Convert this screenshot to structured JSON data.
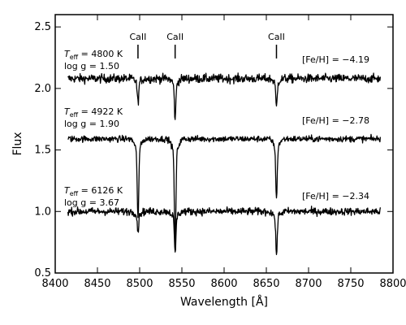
{
  "chart_data": {
    "type": "line",
    "xlabel": "Wavelength [Å]",
    "ylabel": "Flux",
    "xlim": [
      8400,
      8800
    ],
    "ylim": [
      0.5,
      2.6
    ],
    "x_ticks": [
      8400,
      8450,
      8500,
      8550,
      8600,
      8650,
      8700,
      8750,
      8800
    ],
    "y_ticks": [
      0.5,
      1.0,
      1.5,
      2.0,
      2.5
    ],
    "grid": false,
    "lines": [
      {
        "label": "CaII",
        "wavelength": 8498
      },
      {
        "label": "CaII",
        "wavelength": 8542
      },
      {
        "label": "CaII",
        "wavelength": 8662
      }
    ],
    "series": [
      {
        "teff": "4800 K",
        "logg": "log g = 1.50",
        "feh": "[Fe/H] = −4.19",
        "x_range": [
          8415,
          8785
        ],
        "baseline": 2.08,
        "noise": 0.035,
        "absorption": [
          {
            "x": 8498,
            "depth": 0.17
          },
          {
            "x": 8542,
            "depth": 0.28
          },
          {
            "x": 8662,
            "depth": 0.2
          }
        ]
      },
      {
        "teff": "4922 K",
        "logg": "log g = 1.90",
        "feh": "[Fe/H] = −2.78",
        "x_range": [
          8415,
          8785
        ],
        "baseline": 1.59,
        "noise": 0.025,
        "absorption": [
          {
            "x": 8498,
            "depth": 0.57
          },
          {
            "x": 8542,
            "depth": 0.76
          },
          {
            "x": 8662,
            "depth": 0.42
          }
        ]
      },
      {
        "teff": "6126 K",
        "logg": "log g = 3.67",
        "feh": "[Fe/H] = −2.34",
        "x_range": [
          8415,
          8785
        ],
        "baseline": 1.0,
        "noise": 0.03,
        "absorption": [
          {
            "x": 8498,
            "depth": 0.14
          },
          {
            "x": 8542,
            "depth": 0.3
          },
          {
            "x": 8662,
            "depth": 0.3
          }
        ]
      }
    ]
  }
}
